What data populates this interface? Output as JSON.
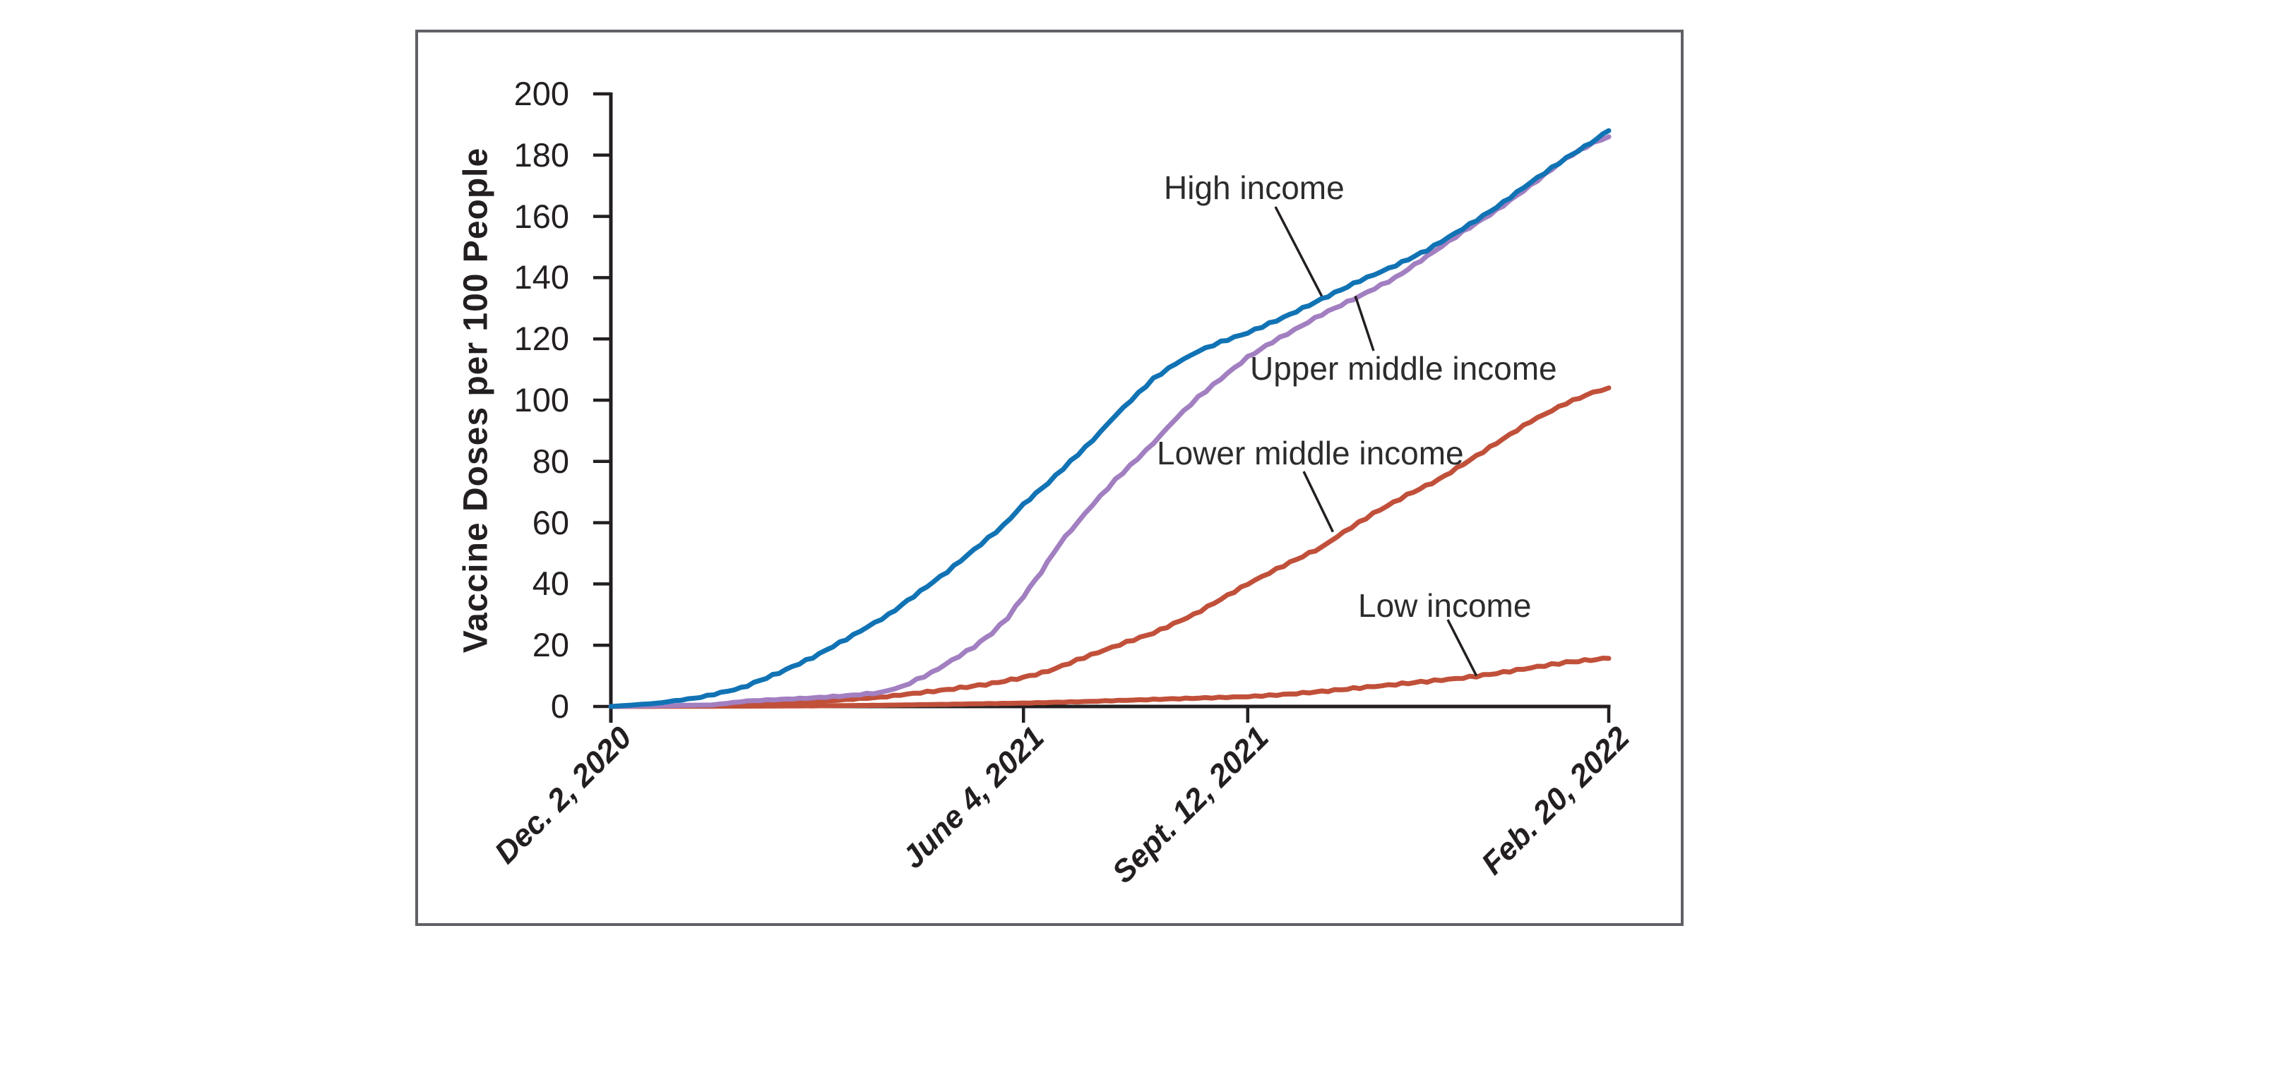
{
  "chart_data": {
    "type": "line",
    "title": "",
    "ylabel": "Vaccine Doses per 100 People",
    "ylim": [
      0,
      200
    ],
    "yticks": [
      0,
      20,
      40,
      60,
      80,
      100,
      120,
      140,
      160,
      180,
      200
    ],
    "x_axis": {
      "tick_labels": [
        "Dec. 2, 2020",
        "June 4, 2021",
        "Sept. 12, 2021",
        "Feb. 20, 2022"
      ],
      "tick_days": [
        0,
        184,
        284,
        445
      ],
      "total_days": 445
    },
    "grid": false,
    "legend_position": "inline-annotations",
    "axis_color": "#231f20",
    "border_color": "#5f6165",
    "series": [
      {
        "name": "High income",
        "color": "#1173b4",
        "points": [
          [
            0,
            0
          ],
          [
            20,
            1
          ],
          [
            40,
            3
          ],
          [
            58,
            6
          ],
          [
            75,
            11
          ],
          [
            90,
            16
          ],
          [
            105,
            22
          ],
          [
            124,
            30
          ],
          [
            135,
            36
          ],
          [
            150,
            44
          ],
          [
            165,
            53
          ],
          [
            175,
            59
          ],
          [
            184,
            66
          ],
          [
            195,
            73
          ],
          [
            205,
            80
          ],
          [
            215,
            87
          ],
          [
            225,
            95
          ],
          [
            232,
            100
          ],
          [
            242,
            107
          ],
          [
            252,
            112
          ],
          [
            262,
            116
          ],
          [
            272,
            119
          ],
          [
            284,
            122
          ],
          [
            300,
            127
          ],
          [
            317,
            133
          ],
          [
            334,
            139
          ],
          [
            350,
            144
          ],
          [
            364,
            149
          ],
          [
            380,
            156
          ],
          [
            395,
            163
          ],
          [
            410,
            171
          ],
          [
            426,
            179
          ],
          [
            437,
            184
          ],
          [
            445,
            188
          ]
        ]
      },
      {
        "name": "Upper middle income",
        "color": "#a27fc1",
        "points": [
          [
            0,
            0
          ],
          [
            45,
            0.5
          ],
          [
            61,
            1.8
          ],
          [
            90,
            2.8
          ],
          [
            105,
            3.5
          ],
          [
            120,
            4.5
          ],
          [
            130,
            6.5
          ],
          [
            143,
            11
          ],
          [
            152,
            15
          ],
          [
            162,
            19.5
          ],
          [
            170,
            24
          ],
          [
            177,
            29
          ],
          [
            184,
            36
          ],
          [
            192,
            44
          ],
          [
            200,
            53
          ],
          [
            208,
            60
          ],
          [
            215,
            66
          ],
          [
            225,
            74
          ],
          [
            235,
            81
          ],
          [
            242,
            86
          ],
          [
            252,
            94
          ],
          [
            262,
            101
          ],
          [
            272,
            107
          ],
          [
            284,
            114
          ],
          [
            295,
            119
          ],
          [
            305,
            123
          ],
          [
            317,
            128
          ],
          [
            334,
            134
          ],
          [
            350,
            140
          ],
          [
            364,
            147
          ],
          [
            380,
            155
          ],
          [
            395,
            162
          ],
          [
            410,
            170
          ],
          [
            426,
            179
          ],
          [
            438,
            184
          ],
          [
            445,
            186
          ]
        ]
      },
      {
        "name": "Lower middle income",
        "color": "#c1503a",
        "points": [
          [
            0,
            0
          ],
          [
            40,
            0.2
          ],
          [
            61,
            0.6
          ],
          [
            90,
            1.5
          ],
          [
            120,
            3
          ],
          [
            150,
            5.5
          ],
          [
            170,
            7.5
          ],
          [
            184,
            9.5
          ],
          [
            195,
            11.5
          ],
          [
            211,
            16
          ],
          [
            230,
            21
          ],
          [
            242,
            24
          ],
          [
            260,
            30
          ],
          [
            272,
            35
          ],
          [
            284,
            40
          ],
          [
            300,
            46
          ],
          [
            317,
            52
          ],
          [
            327,
            57
          ],
          [
            340,
            63
          ],
          [
            355,
            69
          ],
          [
            369,
            74
          ],
          [
            380,
            79
          ],
          [
            395,
            86
          ],
          [
            410,
            93
          ],
          [
            426,
            99
          ],
          [
            438,
            102.5
          ],
          [
            445,
            104
          ]
        ]
      },
      {
        "name": "Low income",
        "color": "#c1503a",
        "points": [
          [
            0,
            0
          ],
          [
            61,
            0.1
          ],
          [
            90,
            0.2
          ],
          [
            120,
            0.4
          ],
          [
            150,
            0.7
          ],
          [
            184,
            1.1
          ],
          [
            211,
            1.6
          ],
          [
            242,
            2.3
          ],
          [
            265,
            2.8
          ],
          [
            284,
            3.2
          ],
          [
            300,
            3.9
          ],
          [
            317,
            4.9
          ],
          [
            334,
            6.1
          ],
          [
            350,
            7.2
          ],
          [
            364,
            8.2
          ],
          [
            380,
            9.3
          ],
          [
            395,
            10.8
          ],
          [
            410,
            12.6
          ],
          [
            426,
            14.4
          ],
          [
            437,
            15.2
          ],
          [
            445,
            15.7
          ]
        ]
      }
    ],
    "annotations": [
      {
        "label": "High income",
        "series_index": 0,
        "target_day": 317,
        "target_value": 134
      },
      {
        "label": "Upper middle income",
        "series_index": 1,
        "target_day": 332,
        "target_value": 134
      },
      {
        "label": "Lower middle income",
        "series_index": 2,
        "target_day": 322,
        "target_value": 57
      },
      {
        "label": "Low income",
        "series_index": 3,
        "target_day": 386,
        "target_value": 10
      }
    ]
  }
}
